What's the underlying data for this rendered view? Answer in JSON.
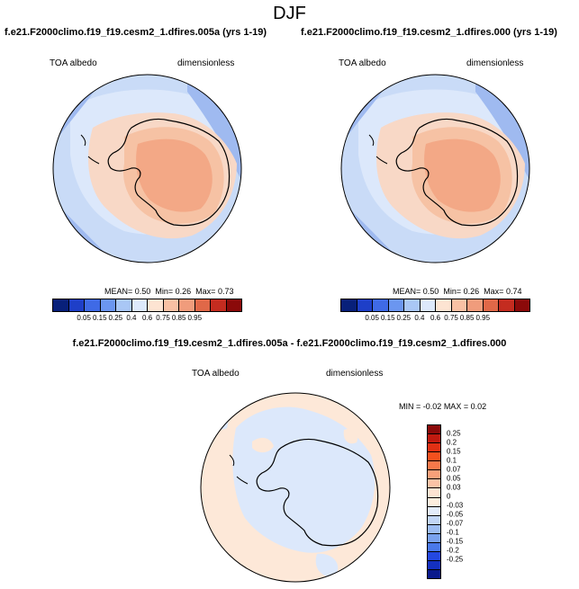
{
  "title": "DJF",
  "panels": [
    {
      "run": "f.e21.F2000climo.f19_f19.cesm2_1.dfires.005a (yrs 1-19)",
      "variable": "TOA albedo",
      "units": "dimensionless",
      "mean_label": "MEAN=",
      "mean": "0.50",
      "min_label": "Min=",
      "min": "0.26",
      "max_label": "Max=",
      "max": "0.73"
    },
    {
      "run": "f.e21.F2000climo.f19_f19.cesm2_1.dfires.000 (yrs 1-19)",
      "variable": "TOA albedo",
      "units": "dimensionless",
      "mean_label": "MEAN=",
      "mean": "0.50",
      "min_label": "Min=",
      "min": "0.26",
      "max_label": "Max=",
      "max": "0.74"
    }
  ],
  "diff": {
    "title": "f.e21.F2000climo.f19_f19.cesm2_1.dfires.005a - f.e21.F2000climo.f19_f19.cesm2_1.dfires.000",
    "variable": "TOA albedo",
    "units": "dimensionless",
    "min_label": "MIN =",
    "min": "-0.02",
    "max_label": "MAX =",
    "max": "0.02"
  },
  "colorbar_abs": {
    "levels": [
      "0.05",
      "0.15",
      "0.25",
      "0.4",
      "0.6",
      "0.75",
      "0.85",
      "0.95"
    ],
    "colors": [
      "#08207a",
      "#1e3fc8",
      "#3f6ae6",
      "#6b96f0",
      "#a9c7f5",
      "#dde9fb",
      "#fde4d2",
      "#f8c1a4",
      "#f09c7c",
      "#e06848",
      "#c42c20",
      "#8b0a0a"
    ]
  },
  "colorbar_diff": {
    "levels": [
      "0.25",
      "0.2",
      "0.15",
      "0.1",
      "0.07",
      "0.05",
      "0.03",
      "0",
      "-0.03",
      "-0.05",
      "-0.07",
      "-0.1",
      "-0.15",
      "-0.2",
      "-0.25"
    ],
    "colors": [
      "#8b0a0a",
      "#c01a10",
      "#e03014",
      "#f4501e",
      "#f6784a",
      "#f8a07a",
      "#fbc3a6",
      "#fde4d2",
      "#fdeede",
      "#e3ecfa",
      "#c2d6f6",
      "#9dbdf2",
      "#7aa2ee",
      "#4a79ea",
      "#2448e0",
      "#1430c0",
      "#0a1a8c"
    ]
  },
  "map_colors": {
    "ocean_low": "#c9dbf7",
    "ocean_mid": "#dce8fb",
    "ocean_dark": "#9fbaf0",
    "ice_edge": "#f8d8c6",
    "ice_mid": "#f6c2a4",
    "ice_core": "#f3a886",
    "diff_pos": "#fde8d8",
    "diff_neg": "#dce8fb",
    "coast": "#000000"
  }
}
